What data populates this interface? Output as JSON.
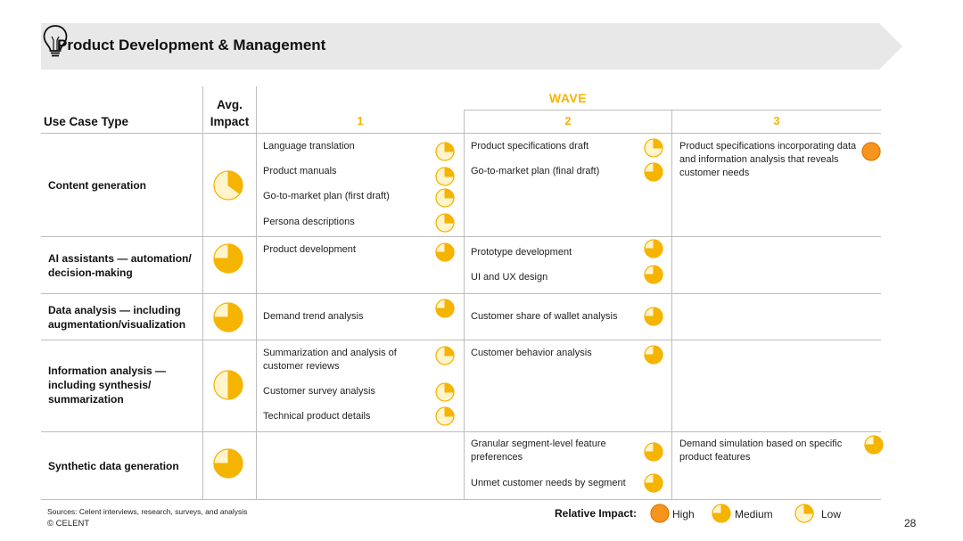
{
  "header": {
    "title": "Product Development & Management",
    "icon": "lightbulb-icon"
  },
  "columns": {
    "use_case_type": "Use Case Type",
    "avg_impact_line1": "Avg.",
    "avg_impact_line2": "Impact",
    "wave_label": "WAVE",
    "waves": [
      "1",
      "2",
      "3"
    ]
  },
  "colors": {
    "accent": "#f5b400",
    "high": "#f7941d",
    "rule": "#bdbdbd",
    "banner": "#e8e8e8"
  },
  "impact_scale": {
    "low": 0.25,
    "medium": 0.75,
    "high": 1.0
  },
  "rows": [
    {
      "use_case": "Content generation",
      "avg_impact": 0.35,
      "wave1": [
        {
          "label": "Language translation",
          "impact": "low"
        },
        {
          "label": "Product manuals",
          "impact": "low"
        },
        {
          "label": "Go-to-market plan (first draft)",
          "impact": "low"
        },
        {
          "label": "Persona descriptions",
          "impact": "low"
        }
      ],
      "wave2": [
        {
          "label": "Product specifications draft",
          "impact": "low"
        },
        {
          "label": "Go-to-market plan (final draft)",
          "impact": "medium"
        }
      ],
      "wave3": [
        {
          "label": "Product specifications incorporating data and information analysis that reveals customer needs",
          "impact": "high"
        }
      ]
    },
    {
      "use_case": "AI assistants — automation/ decision-making",
      "avg_impact": 0.75,
      "wave1": [
        {
          "label": "Product development",
          "impact": "medium"
        }
      ],
      "wave2": [
        {
          "label": "Prototype development",
          "impact": "medium"
        },
        {
          "label": "UI and UX design",
          "impact": "medium"
        }
      ],
      "wave3": []
    },
    {
      "use_case": "Data analysis — including augmentation/visualization",
      "avg_impact": 0.75,
      "wave1": [
        {
          "label": "Demand trend analysis",
          "impact": "medium"
        }
      ],
      "wave2": [
        {
          "label": "Customer share of wallet analysis",
          "impact": "medium"
        }
      ],
      "wave3": []
    },
    {
      "use_case": "Information analysis — including synthesis/ summarization",
      "avg_impact": 0.5,
      "wave1": [
        {
          "label": "Summarization and analysis of customer reviews",
          "impact": "low"
        },
        {
          "label": "Customer survey analysis",
          "impact": "low"
        },
        {
          "label": "Technical product details",
          "impact": "low"
        }
      ],
      "wave2": [
        {
          "label": "Customer behavior analysis",
          "impact": "medium"
        }
      ],
      "wave3": []
    },
    {
      "use_case": "Synthetic data generation",
      "avg_impact": 0.75,
      "wave1": [],
      "wave2": [
        {
          "label": "Granular segment-level feature preferences",
          "impact": "medium"
        },
        {
          "label": "Unmet customer needs by segment",
          "impact": "medium"
        }
      ],
      "wave3": [
        {
          "label": "Demand simulation based on specific product features",
          "impact": "medium"
        }
      ]
    }
  ],
  "footer": {
    "sources": "Sources: Celent interviews, research, surveys, and analysis",
    "copyright": "© CELENT",
    "legend_title": "Relative Impact:",
    "legend": {
      "high": "High",
      "medium": "Medium",
      "low": "Low"
    },
    "page_number": "28"
  }
}
